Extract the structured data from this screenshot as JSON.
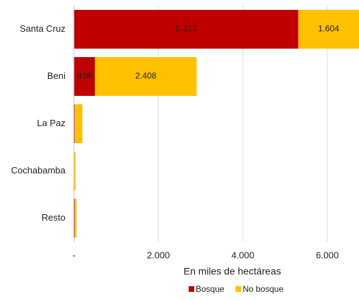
{
  "chart_data": {
    "type": "stacked-barh",
    "x_label": "En miles de hectáreas",
    "categories": [
      "Santa Cruz",
      "Beni",
      "La Paz",
      "Cochabamba",
      "Resto"
    ],
    "series": [
      {
        "name": "Bosque",
        "color": "#c00000",
        "values": [
          5313,
          498,
          20,
          10,
          20
        ],
        "value_labels": [
          "5.313",
          "498",
          null,
          null,
          null
        ]
      },
      {
        "name": "No bosque",
        "color": "#ffc000",
        "values": [
          1604,
          2408,
          180,
          30,
          40
        ],
        "value_labels": [
          "1.604",
          "2.408",
          null,
          null,
          null
        ]
      }
    ],
    "xlim": [
      0,
      6750
    ],
    "xticks": [
      {
        "value": 0,
        "label": "-"
      },
      {
        "value": 2000,
        "label": "2.000"
      },
      {
        "value": 4000,
        "label": "4.000"
      },
      {
        "value": 6000,
        "label": "6.000"
      }
    ],
    "grid": true,
    "legend": "bottom"
  }
}
